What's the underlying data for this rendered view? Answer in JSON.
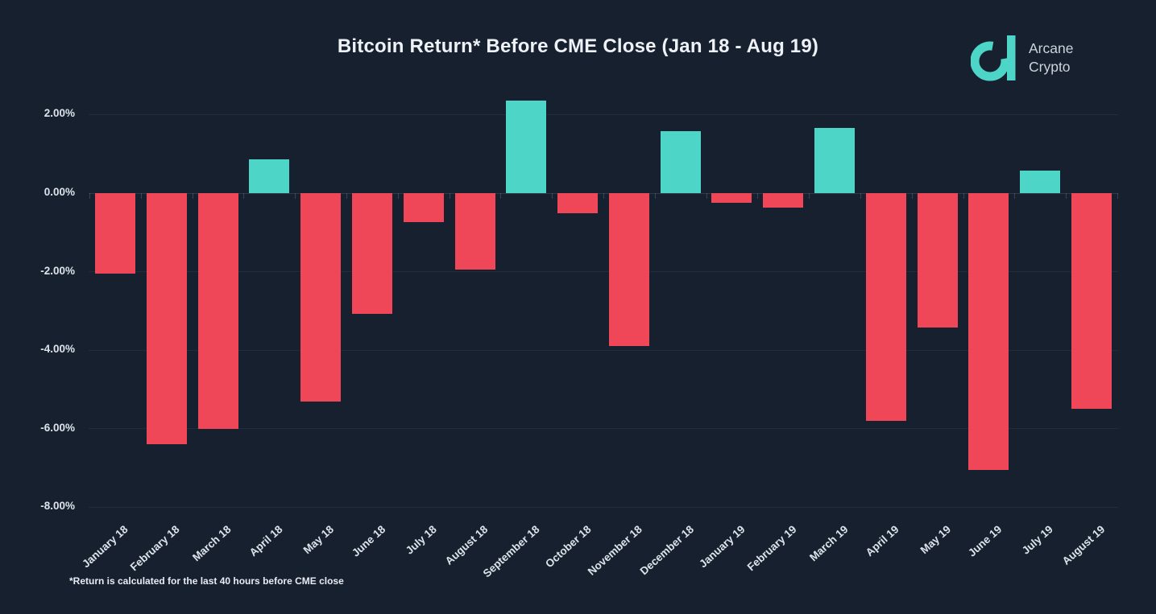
{
  "page": {
    "background": "#16202f"
  },
  "header": {
    "title": "Bitcoin Return* Before CME Close (Jan 18 - Aug 19)"
  },
  "logo": {
    "company": "Arcane Crypto",
    "line1": "Arcane",
    "line2": "Crypto",
    "mark_color": "#4dd5c8",
    "text_color": "#ccd3da"
  },
  "chart_data": {
    "type": "bar",
    "title": "Bitcoin Return* Before CME Close (Jan 18 - Aug 19)",
    "xlabel": "",
    "ylabel": "",
    "unit": "%",
    "categories": [
      "January 18",
      "February 18",
      "March 18",
      "April 18",
      "May 18",
      "June 18",
      "July 18",
      "August 18",
      "September 18",
      "October 18",
      "November 18",
      "December 18",
      "January 19",
      "February 19",
      "March 19",
      "April 19",
      "May 19",
      "June 19",
      "July 19",
      "August 19"
    ],
    "values": [
      -2.05,
      -6.4,
      -6.0,
      0.87,
      -5.3,
      -3.07,
      -0.74,
      -1.95,
      2.36,
      -0.52,
      -3.9,
      1.57,
      -0.25,
      -0.37,
      1.66,
      -5.8,
      -3.43,
      -7.04,
      0.57,
      -5.5
    ],
    "y_ticks": [
      2,
      0,
      -2,
      -4,
      -6,
      -8
    ],
    "y_tick_labels": [
      "2.00%",
      "0.00%",
      "-2.00%",
      "-4.00%",
      "-6.00%",
      "-8.00%"
    ],
    "ylim": [
      -8.4,
      2.6
    ],
    "grid": true,
    "legend": "none",
    "positive_color": "#4dd5c8",
    "negative_color": "#ef4757",
    "footnote": "*Return is calculated for the last 40 hours before CME close"
  }
}
